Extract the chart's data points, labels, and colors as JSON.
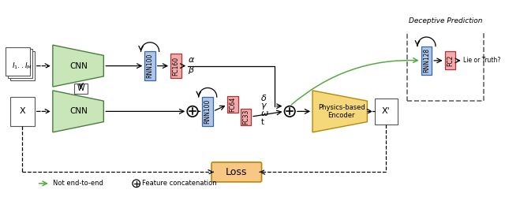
{
  "bg_color": "#ffffff",
  "title": "Deceptive Prediction",
  "fig_width": 6.4,
  "fig_height": 2.5,
  "dpi": 100,
  "cnn_light_green": "#C8E6B8",
  "rnn_blue": "#AEC6E8",
  "fc_pink": "#F4AAAA",
  "loss_orange": "#F9C784",
  "encoder_yellow": "#F5D87A",
  "legend_not_end": "Not end-to-end",
  "legend_concat": "Feature concatenation"
}
